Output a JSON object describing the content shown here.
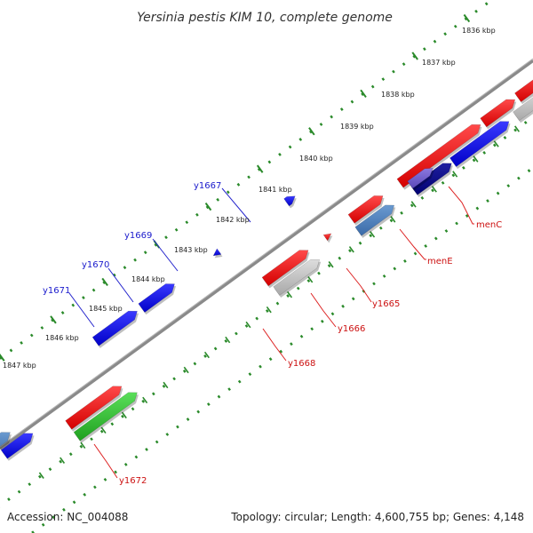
{
  "title": "Yersinia pestis KIM 10, complete genome",
  "footer": {
    "accession": "Accession: NC_004088",
    "topology": "Topology: circular; Length: 4,600,755 bp; Genes: 4,148"
  },
  "colors": {
    "backbone": "#777777",
    "tick_green": "#2a8a2a",
    "label_blue": "#1a1acc",
    "label_red": "#cc1111",
    "leader_blue": "#2222cc",
    "leader_red": "#dd2222"
  },
  "ruler": {
    "labels": [
      "1836 kbp",
      "1837 kbp",
      "1838 kbp",
      "1839 kbp",
      "1840 kbp",
      "1841 kbp",
      "1842 kbp",
      "1843 kbp",
      "1844 kbp",
      "1845 kbp",
      "1846 kbp",
      "1847 kbp"
    ]
  },
  "genes": [
    {
      "label": "menC",
      "color": "red"
    },
    {
      "label": "menE",
      "color": "red"
    },
    {
      "label": "y1665",
      "color": "red"
    },
    {
      "label": "y1666",
      "color": "red"
    },
    {
      "label": "y1668",
      "color": "red"
    },
    {
      "label": "y1672",
      "color": "red"
    },
    {
      "label": "y1667",
      "color": "blue"
    },
    {
      "label": "y1669",
      "color": "blue"
    },
    {
      "label": "y1670",
      "color": "blue"
    },
    {
      "label": "y1671",
      "color": "blue"
    }
  ]
}
